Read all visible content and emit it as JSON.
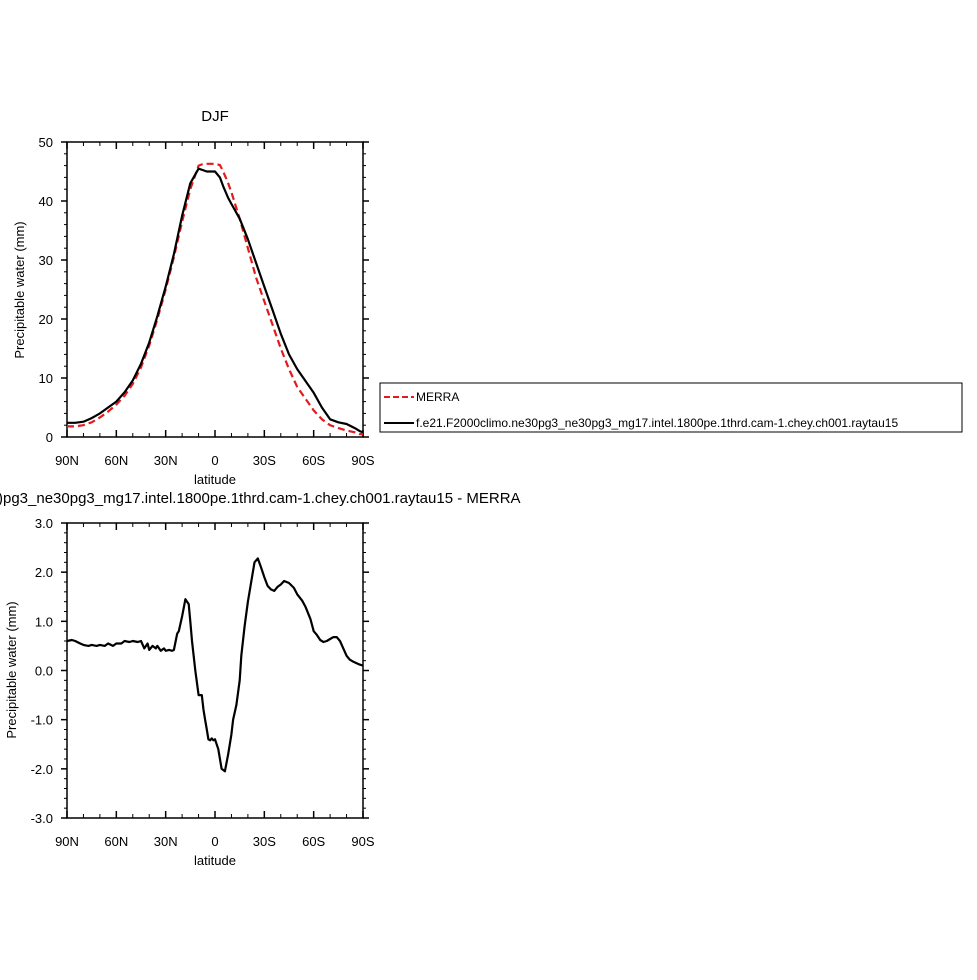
{
  "chart_data": [
    {
      "type": "line",
      "title": "DJF",
      "xlabel": "latitude",
      "ylabel": "Precipitable water (mm)",
      "xlim": [
        90,
        -90
      ],
      "ylim": [
        0,
        50
      ],
      "x_ticks": [
        {
          "value": 90,
          "label": "90N"
        },
        {
          "value": 60,
          "label": "60N"
        },
        {
          "value": 30,
          "label": "30N"
        },
        {
          "value": 0,
          "label": "0"
        },
        {
          "value": -30,
          "label": "30S"
        },
        {
          "value": -60,
          "label": "60S"
        },
        {
          "value": -90,
          "label": "90S"
        }
      ],
      "y_ticks": [
        {
          "value": 0,
          "label": "0"
        },
        {
          "value": 10,
          "label": "10"
        },
        {
          "value": 20,
          "label": "20"
        },
        {
          "value": 30,
          "label": "30"
        },
        {
          "value": 40,
          "label": "40"
        },
        {
          "value": 50,
          "label": "50"
        }
      ],
      "grid": false,
      "legend_position": "right",
      "series": [
        {
          "name": "MERRA",
          "color": "#e41a1c",
          "dash": "dashed",
          "x": [
            90,
            85,
            80,
            75,
            70,
            65,
            60,
            55,
            50,
            45,
            40,
            35,
            30,
            25,
            20,
            15,
            10,
            7,
            5,
            3,
            0,
            -3,
            -5,
            -8,
            -10,
            -15,
            -20,
            -25,
            -30,
            -35,
            -40,
            -45,
            -50,
            -55,
            -60,
            -65,
            -70,
            -75,
            -80,
            -85,
            -88,
            -90
          ],
          "y": [
            1.8,
            1.8,
            2.0,
            2.5,
            3.3,
            4.3,
            5.5,
            7.0,
            9.0,
            11.8,
            15.5,
            20.0,
            25.0,
            30.5,
            36.5,
            42.0,
            46.0,
            46.3,
            46.3,
            46.3,
            46.3,
            46.1,
            45.0,
            43.0,
            41.5,
            37.0,
            32.0,
            27.0,
            23.0,
            19.0,
            15.0,
            11.5,
            8.5,
            6.5,
            4.5,
            3.0,
            2.0,
            1.5,
            1.1,
            0.8,
            0.5,
            0.5
          ]
        },
        {
          "name": "f.e21.F2000climo.ne30pg3_ne30pg3_mg17.intel.1800pe.1thrd.cam-1.chey.ch001.raytau15",
          "color": "#000000",
          "dash": "solid",
          "x": [
            90,
            85,
            80,
            75,
            70,
            65,
            60,
            55,
            50,
            45,
            40,
            35,
            30,
            25,
            20,
            15,
            10,
            5,
            2,
            0,
            -3,
            -5,
            -8,
            -10,
            -15,
            -20,
            -25,
            -30,
            -35,
            -40,
            -45,
            -50,
            -55,
            -60,
            -65,
            -70,
            -75,
            -80,
            -85,
            -88,
            -90
          ],
          "y": [
            2.4,
            2.4,
            2.6,
            3.2,
            4.0,
            5.0,
            6.0,
            7.6,
            9.6,
            12.4,
            16.0,
            20.5,
            25.5,
            31.0,
            37.5,
            43.0,
            45.5,
            45.0,
            45.0,
            45.0,
            44.0,
            42.5,
            40.5,
            39.5,
            37.0,
            33.5,
            29.5,
            25.5,
            21.5,
            17.5,
            14.0,
            11.5,
            9.5,
            7.5,
            5.0,
            3.0,
            2.5,
            2.2,
            1.5,
            1.0,
            0.8
          ]
        }
      ]
    },
    {
      "type": "line",
      "title": ")pg3_ne30pg3_mg17.intel.1800pe.1thrd.cam-1.chey.ch001.raytau15 - MERRA",
      "xlabel": "latitude",
      "ylabel": "Precipitable water (mm)",
      "xlim": [
        90,
        -90
      ],
      "ylim": [
        -3.0,
        3.0
      ],
      "x_ticks": [
        {
          "value": 90,
          "label": "90N"
        },
        {
          "value": 60,
          "label": "60N"
        },
        {
          "value": 30,
          "label": "30N"
        },
        {
          "value": 0,
          "label": "0"
        },
        {
          "value": -30,
          "label": "30S"
        },
        {
          "value": -60,
          "label": "60S"
        },
        {
          "value": -90,
          "label": "90S"
        }
      ],
      "y_ticks": [
        {
          "value": -3,
          "label": "-3.0"
        },
        {
          "value": -2,
          "label": "-2.0"
        },
        {
          "value": -1,
          "label": "-1.0"
        },
        {
          "value": 0,
          "label": "0.0"
        },
        {
          "value": 1,
          "label": "1.0"
        },
        {
          "value": 2,
          "label": "2.0"
        },
        {
          "value": 3,
          "label": "3.0"
        }
      ],
      "grid": false,
      "series": [
        {
          "color": "#000000",
          "dash": "solid",
          "x": [
            90,
            87,
            85,
            82,
            80,
            77,
            75,
            72,
            70,
            67,
            65,
            62,
            60,
            57,
            55,
            52,
            50,
            47,
            45,
            43,
            41,
            40,
            38,
            36,
            35,
            33,
            31,
            30,
            28,
            26,
            25,
            23,
            22,
            20,
            18,
            16,
            15,
            14,
            12,
            10,
            8,
            7,
            6,
            5,
            4,
            3,
            2,
            1,
            0,
            -2,
            -4,
            -6,
            -8,
            -9,
            -10,
            -11,
            -13,
            -15,
            -16,
            -18,
            -20,
            -22,
            -24,
            -26,
            -28,
            -30,
            -32,
            -34,
            -36,
            -38,
            -40,
            -42,
            -45,
            -48,
            -50,
            -53,
            -55,
            -58,
            -60,
            -62,
            -64,
            -66,
            -68,
            -70,
            -72,
            -74,
            -76,
            -78,
            -80,
            -82,
            -84,
            -86,
            -88,
            -90
          ],
          "y": [
            0.6,
            0.62,
            0.6,
            0.55,
            0.52,
            0.5,
            0.52,
            0.5,
            0.52,
            0.5,
            0.55,
            0.5,
            0.55,
            0.55,
            0.6,
            0.58,
            0.6,
            0.58,
            0.6,
            0.45,
            0.55,
            0.42,
            0.5,
            0.45,
            0.5,
            0.4,
            0.45,
            0.4,
            0.42,
            0.4,
            0.42,
            0.75,
            0.8,
            1.1,
            1.45,
            1.35,
            1.0,
            0.6,
            0.0,
            -0.5,
            -0.5,
            -0.8,
            -1.0,
            -1.2,
            -1.4,
            -1.42,
            -1.38,
            -1.42,
            -1.4,
            -1.6,
            -2.0,
            -2.05,
            -1.7,
            -1.5,
            -1.3,
            -1.0,
            -0.7,
            -0.2,
            0.3,
            0.9,
            1.4,
            1.8,
            2.2,
            2.28,
            2.1,
            1.9,
            1.72,
            1.65,
            1.62,
            1.7,
            1.75,
            1.82,
            1.78,
            1.68,
            1.55,
            1.42,
            1.3,
            1.05,
            0.8,
            0.72,
            0.62,
            0.58,
            0.6,
            0.64,
            0.68,
            0.68,
            0.6,
            0.45,
            0.3,
            0.22,
            0.18,
            0.15,
            0.12,
            0.1
          ]
        }
      ]
    }
  ]
}
